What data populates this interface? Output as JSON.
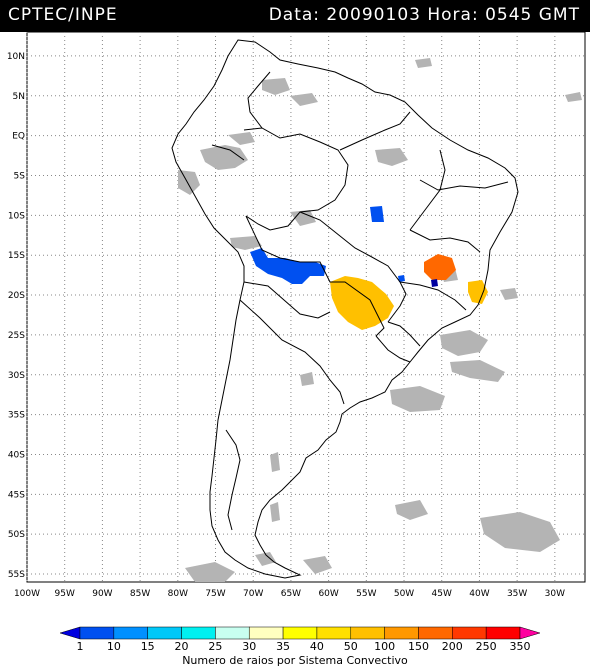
{
  "header": {
    "source": "CPTEC/INPE",
    "date_label": "Data:",
    "date_value": "20090103",
    "time_label": "Hora:",
    "time_value": "0545 GMT"
  },
  "map": {
    "lat_labels": [
      "10N",
      "5N",
      "EQ",
      "5S",
      "10S",
      "15S",
      "20S",
      "25S",
      "30S",
      "35S",
      "40S",
      "45S",
      "50S",
      "55S"
    ],
    "lat_values": [
      10,
      5,
      0,
      -5,
      -10,
      -15,
      -20,
      -25,
      -30,
      -35,
      -40,
      -45,
      -50,
      -55
    ],
    "lon_labels": [
      "100W",
      "95W",
      "90W",
      "85W",
      "80W",
      "75W",
      "70W",
      "65W",
      "60W",
      "55W",
      "50W",
      "45W",
      "40W",
      "35W",
      "30W"
    ],
    "lon_values": [
      -100,
      -95,
      -90,
      -85,
      -80,
      -75,
      -70,
      -65,
      -60,
      -55,
      -50,
      -45,
      -40,
      -35,
      -30
    ],
    "lon_range": [
      -100,
      -26
    ],
    "lat_range": [
      13,
      -56
    ],
    "gridlines": "dotted"
  },
  "legend": {
    "title": "Numero de raios por Sistema Convectivo",
    "ticks": [
      "1",
      "10",
      "15",
      "20",
      "25",
      "30",
      "35",
      "40",
      "50",
      "100",
      "150",
      "200",
      "250",
      "350"
    ],
    "colors": [
      "#0000e0",
      "#0050f0",
      "#0090ff",
      "#00c8f8",
      "#00f0f0",
      "#c8fff0",
      "#ffffc0",
      "#ffff00",
      "#ffe000",
      "#ffc000",
      "#ff9800",
      "#ff6800",
      "#ff3800",
      "#ff0000",
      "#ff00a0"
    ]
  },
  "layers": {
    "cloud_color": "#b4b4b4",
    "border_color": "#000000"
  }
}
